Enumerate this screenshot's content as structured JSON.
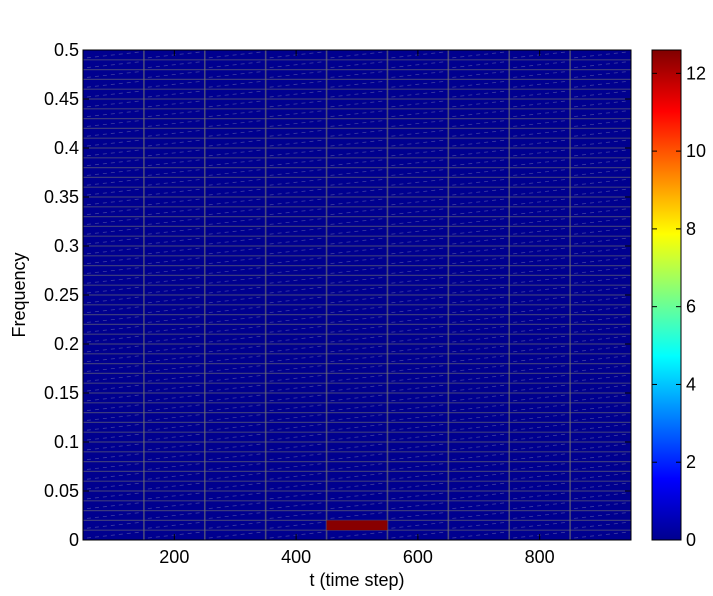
{
  "chart_data": {
    "type": "heatmap",
    "title": "",
    "xlabel": "t (time step)",
    "ylabel": "Frequency",
    "xlim": [
      50,
      950
    ],
    "ylim": [
      0,
      0.5
    ],
    "x_ticks": [
      200,
      400,
      600,
      800
    ],
    "x_tick_labels": [
      "200",
      "400",
      "600",
      "800"
    ],
    "y_ticks": [
      0,
      0.05,
      0.1,
      0.15,
      0.2,
      0.25,
      0.3,
      0.35,
      0.4,
      0.45,
      0.5
    ],
    "y_tick_labels": [
      "0",
      "0.05",
      "0.1",
      "0.15",
      "0.2",
      "0.25",
      "0.3",
      "0.35",
      "0.4",
      "0.45",
      "0.5"
    ],
    "time_bins": [
      100,
      200,
      300,
      400,
      500,
      600,
      700,
      800,
      900
    ],
    "time_bin_width": 100,
    "frequency_bin_width": 0.01,
    "background_value": 0,
    "hotspots": [
      {
        "t": 500,
        "frequency": 0.015,
        "value": 12.5
      }
    ],
    "colorbar": {
      "colormap": "jet",
      "range": [
        0,
        12.6
      ],
      "ticks": [
        0,
        2,
        4,
        6,
        8,
        10,
        12
      ],
      "tick_labels": [
        "0",
        "2",
        "4",
        "6",
        "8",
        "10",
        "12"
      ]
    },
    "grid": true
  }
}
